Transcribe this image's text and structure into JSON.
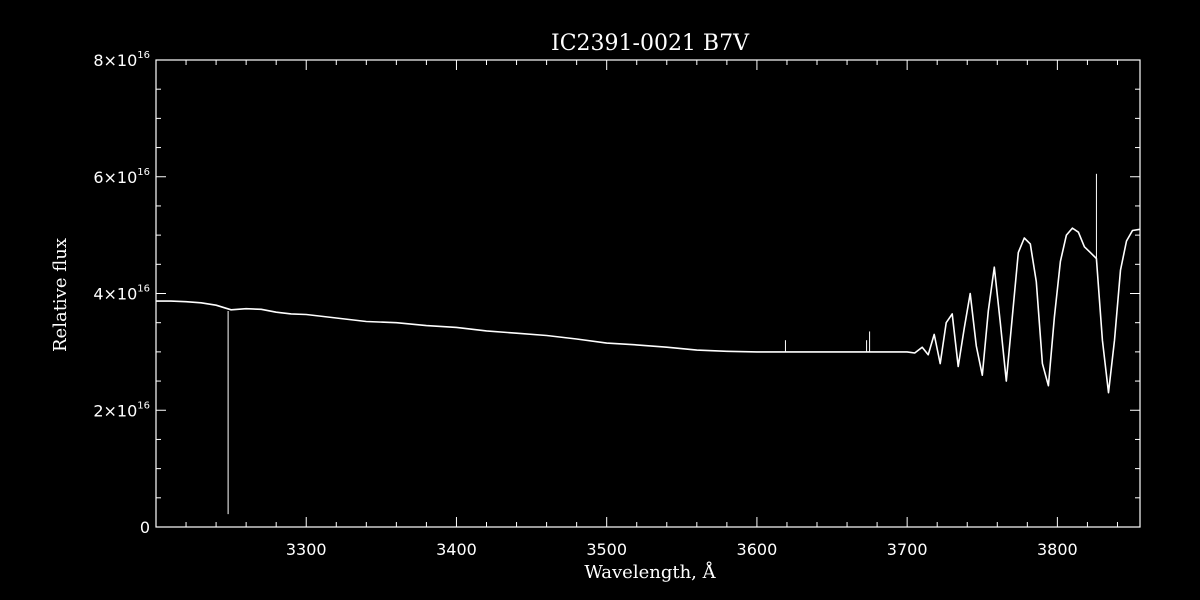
{
  "colors": {
    "background": "#000000",
    "foreground": "#ffffff"
  },
  "chart_data": {
    "type": "line",
    "title": "IC2391-0021  B7V",
    "xlabel": "Wavelength, Å",
    "ylabel": "Relative flux",
    "xlim": [
      3200,
      3855
    ],
    "ylim": [
      0,
      8e+16
    ],
    "x_ticks": [
      {
        "value": 3300,
        "label": "3300"
      },
      {
        "value": 3400,
        "label": "3400"
      },
      {
        "value": 3500,
        "label": "3500"
      },
      {
        "value": 3600,
        "label": "3600"
      },
      {
        "value": 3700,
        "label": "3700"
      },
      {
        "value": 3800,
        "label": "3800"
      }
    ],
    "y_ticks": [
      {
        "value": 0,
        "mant": "0",
        "exp": ""
      },
      {
        "value": 2e+16,
        "mant": "2×10",
        "exp": "16"
      },
      {
        "value": 4e+16,
        "mant": "4×10",
        "exp": "16"
      },
      {
        "value": 6e+16,
        "mant": "6×10",
        "exp": "16"
      },
      {
        "value": 8e+16,
        "mant": "8×10",
        "exp": "16"
      }
    ],
    "grid": false,
    "series": [
      {
        "color": "#ffffff",
        "x": [
          3200,
          3210,
          3220,
          3230,
          3240,
          3250,
          3260,
          3270,
          3280,
          3290,
          3300,
          3320,
          3340,
          3360,
          3380,
          3400,
          3420,
          3440,
          3460,
          3480,
          3500,
          3520,
          3540,
          3560,
          3580,
          3600,
          3620,
          3640,
          3660,
          3680,
          3700,
          3705,
          3710,
          3714,
          3718,
          3722,
          3726,
          3730,
          3734,
          3738,
          3742,
          3746,
          3750,
          3754,
          3758,
          3762,
          3766,
          3770,
          3774,
          3778,
          3782,
          3786,
          3790,
          3794,
          3798,
          3802,
          3806,
          3810,
          3814,
          3818,
          3822,
          3826,
          3830,
          3834,
          3838,
          3842,
          3846,
          3850,
          3855
        ],
        "y": [
          3.87e+16,
          3.87e+16,
          3.86e+16,
          3.84e+16,
          3.8e+16,
          3.72e+16,
          3.74e+16,
          3.73e+16,
          3.68e+16,
          3.65e+16,
          3.64e+16,
          3.58e+16,
          3.52e+16,
          3.5e+16,
          3.45e+16,
          3.42e+16,
          3.36e+16,
          3.32e+16,
          3.28e+16,
          3.22e+16,
          3.15e+16,
          3.12e+16,
          3.08e+16,
          3.03e+16,
          3.01e+16,
          3e+16,
          3e+16,
          3e+16,
          3e+16,
          3e+16,
          3e+16,
          2.98e+16,
          3.08e+16,
          2.95e+16,
          3.3e+16,
          2.8e+16,
          3.5e+16,
          3.65e+16,
          2.75e+16,
          3.4e+16,
          4e+16,
          3.1e+16,
          2.6e+16,
          3.7e+16,
          4.45e+16,
          3.5e+16,
          2.5e+16,
          3.6e+16,
          4.7e+16,
          4.95e+16,
          4.85e+16,
          4.2e+16,
          2.8e+16,
          2.42e+16,
          3.6e+16,
          4.55e+16,
          5e+16,
          5.12e+16,
          5.05e+16,
          4.8e+16,
          4.7e+16,
          4.6e+16,
          3.2e+16,
          2.3e+16,
          3.2e+16,
          4.4e+16,
          4.9e+16,
          5.08e+16,
          5.1e+16
        ]
      }
    ],
    "spikes": [
      {
        "x": 3248,
        "y_from": 3.7e+16,
        "y_to": 2200000000000000.0
      },
      {
        "x": 3619,
        "y_from": 3e+16,
        "y_to": 3.2e+16
      },
      {
        "x": 3673,
        "y_from": 3e+16,
        "y_to": 3.2e+16
      },
      {
        "x": 3675,
        "y_from": 3e+16,
        "y_to": 3.35e+16
      },
      {
        "x": 3826,
        "y_from": 4.6e+16,
        "y_to": 6.05e+16
      }
    ]
  }
}
